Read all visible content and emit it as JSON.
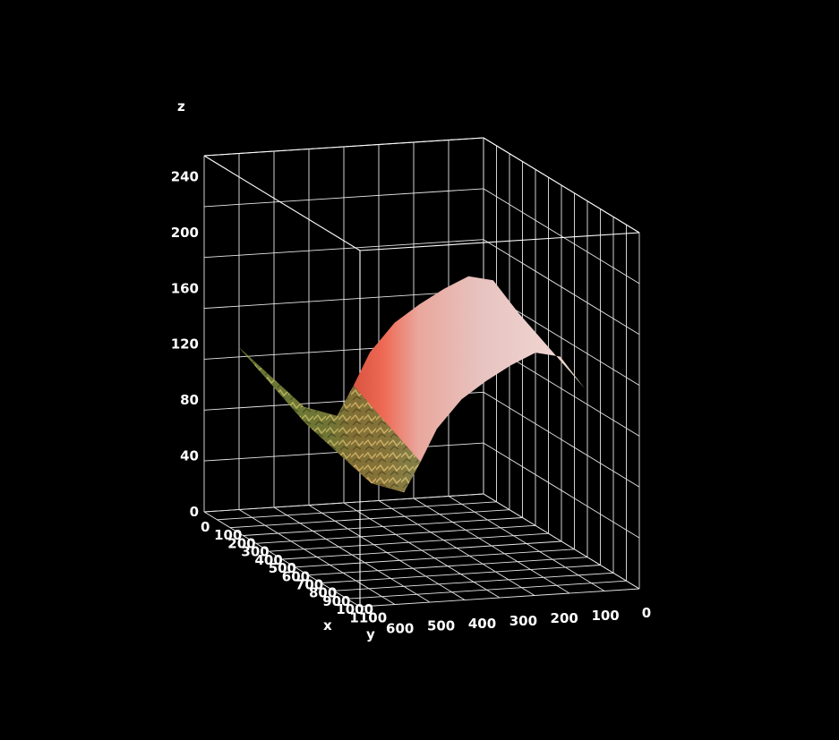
{
  "chart_data": {
    "type": "surface",
    "title": "",
    "xlabel": "x",
    "ylabel": "y",
    "zlabel": "z",
    "x_ticks": [
      "0",
      "100",
      "200",
      "300",
      "400",
      "500",
      "600",
      "700",
      "800",
      "900",
      "1000",
      "1100"
    ],
    "y_ticks": [
      "600",
      "500",
      "400",
      "300",
      "200",
      "100",
      "0"
    ],
    "z_ticks": [
      "0",
      "40",
      "80",
      "120",
      "160",
      "200",
      "240"
    ],
    "x_range": [
      0,
      1150
    ],
    "y_range": [
      0,
      680
    ],
    "z_range": [
      0,
      255
    ],
    "grid": true,
    "background": "#000000",
    "surface_profile_along_y": {
      "y": [
        680,
        600,
        520,
        440,
        400,
        360,
        300,
        240,
        180,
        120,
        60,
        0
      ],
      "z": [
        128,
        105,
        82,
        74,
        95,
        118,
        138,
        150,
        160,
        168,
        164,
        140
      ]
    },
    "surface_texture": "image-mapped height surface (green foliage and pale pink/red flower)",
    "colors": {
      "foliage": "#6f7a3a",
      "flower_red": "#e8574a",
      "flower_pink": "#e8c2c0",
      "grid": "#ffffff"
    }
  }
}
